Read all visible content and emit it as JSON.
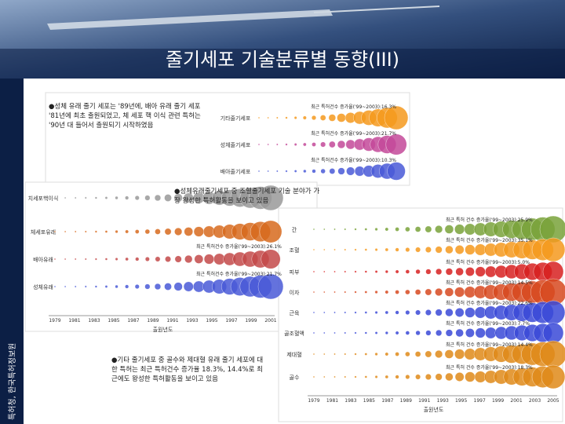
{
  "header": {
    "title": "줄기세포 기술분류별 동향(III)"
  },
  "sidebar": {
    "source": "특허청, 한국특허정보원"
  },
  "panels": [
    {
      "note": "●성체 유래 줄기 세포는 '89년에, 배아 유래 줄기 세포 '81년에 최초 출원되었고, 체 세포 핵 이식 관련 특허는 '90년 대 들어서 출원되기 시작하였음",
      "rows": [
        {
          "label": "기타줄기세포",
          "annotation": "최근 특허건수 증가율('99~2003):16.3%"
        },
        {
          "label": "성체줄기세포",
          "annotation": "최근 특허건수 증가율('99~2003):21.7%"
        },
        {
          "label": "배아줄기세포",
          "annotation": "최근 특허건수 증가율('99~2003):10.3%"
        }
      ]
    },
    {
      "note": "●성체유래줄기세포 중 조혈줄기세포 기술 분야가 가장 왕성한 특허활동을 보이고 있음",
      "rows": [
        {
          "label": "치세포핵이식"
        },
        {
          "label": "체세포유래"
        },
        {
          "label": "배아유래",
          "annotation": "최근 특허건수 증가율('99~2003):26.1%"
        },
        {
          "label": "성체유래",
          "annotation": "최근 특허건수 증가율('99~2003):21.7%"
        }
      ],
      "x_axis": {
        "ticks": [
          "1979",
          "1981",
          "1983",
          "1985",
          "1987",
          "1989",
          "1991",
          "1993",
          "1995",
          "1997",
          "1999",
          "2001"
        ],
        "label": "출원년도"
      }
    },
    {
      "rows": [
        {
          "label": "간",
          "annotation": "최근 특허 건수 증가율('99~2003):25.9%"
        },
        {
          "label": "조혈",
          "annotation": "최근 특허 건수 증가율('99~2003):35.1%"
        },
        {
          "label": "피부",
          "annotation": "최근 특허 건수 증가율('99~2003):5.0%"
        },
        {
          "label": "이자",
          "annotation": "최근 특허 건수 증가율('99~2003):14.5%"
        },
        {
          "label": "근육",
          "annotation": "최근 특허 건수 증가율('99~2003):22.6%"
        },
        {
          "label": "골조혈액",
          "annotation": "최근 특허 건수 증가율('99~2003):7.7%"
        },
        {
          "label": "제대혈",
          "annotation": "최근 특허 건수 증가율('99~2003):14.4%"
        },
        {
          "label": "골수",
          "annotation": "최근 특허 건수 증가율('99~2003):18.3%"
        }
      ],
      "x_axis": {
        "ticks": [
          "1979",
          "1981",
          "1983",
          "1985",
          "1987",
          "1989",
          "1991",
          "1993",
          "1995",
          "1997",
          "1999",
          "2001",
          "2003",
          "2005"
        ],
        "label": "출원년도"
      }
    }
  ],
  "footer_note": "●기타 줄기세포 중 골수와 제대혈 유래 줄기 세포에 대한 특허는 최근 특허건수 증가율 18.3%, 14.4%로 최근에도 왕성한 특허활동을 보이고 있음"
}
